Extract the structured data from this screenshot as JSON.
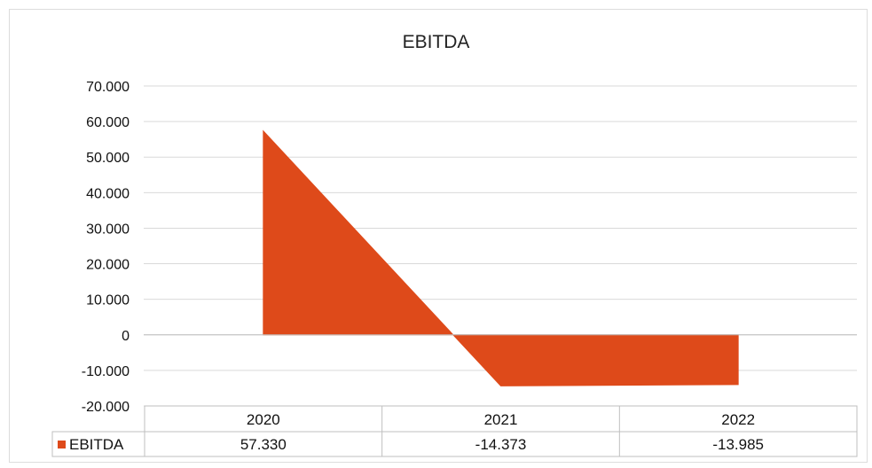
{
  "chart_data": {
    "type": "area",
    "title": "EBITDA",
    "xlabel": "",
    "ylabel": "",
    "categories": [
      "2020",
      "2021",
      "2022"
    ],
    "series": [
      {
        "name": "EBITDA",
        "values": [
          57.33,
          -14.373,
          -13.985
        ]
      }
    ],
    "value_labels": [
      "57.330",
      "-14.373",
      "-13.985"
    ],
    "ylim": [
      -20,
      70
    ],
    "ytick_values": [
      70,
      60,
      50,
      40,
      30,
      20,
      10,
      0,
      -10,
      -20
    ],
    "ytick_labels": [
      "70.000",
      "60.000",
      "50.000",
      "40.000",
      "30.000",
      "20.000",
      "10.000",
      "0",
      "-10.000",
      "-20.000"
    ],
    "grid": true,
    "legend": "data-table",
    "data_table": true
  },
  "colors": {
    "series": "#de4a1a",
    "grid": "#d9d9d9",
    "axis": "#bfbfbf"
  }
}
